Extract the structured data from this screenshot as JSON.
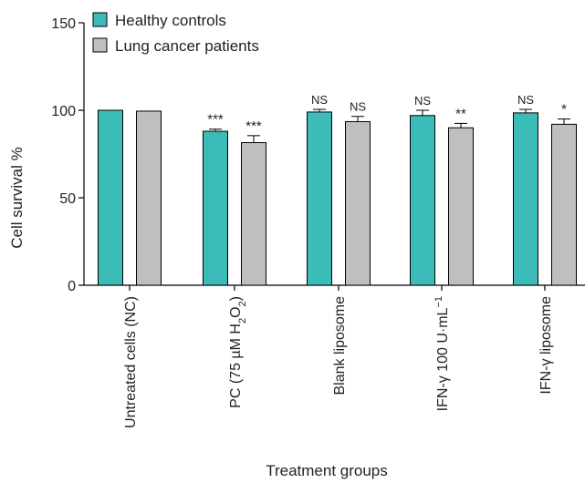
{
  "chart_data": {
    "type": "bar",
    "title": "",
    "xlabel": "Treatment groups",
    "ylabel": "Cell survival %",
    "ylim": [
      0,
      150
    ],
    "yticks": [
      0,
      50,
      100,
      150
    ],
    "grid": false,
    "legend_position": "top-left",
    "categories": [
      {
        "label": "Untreated cells (NC)"
      },
      {
        "label": "PC (75 µM H",
        "sub": "2",
        "label2": "O",
        "sub2": "2",
        "label3": ")"
      },
      {
        "label": "Blank liposome"
      },
      {
        "label": "IFN-γ 100 U·mL",
        "sup": "−1"
      },
      {
        "label": "IFN-γ liposome"
      }
    ],
    "series": [
      {
        "name": "Healthy controls",
        "color": "#3bbcb8",
        "values": [
          100,
          88,
          99,
          97,
          98.5
        ],
        "errors": [
          0,
          1.2,
          1.5,
          3,
          2
        ],
        "annotations": [
          "",
          "***",
          "NS",
          "NS",
          "NS"
        ]
      },
      {
        "name": "Lung cancer patients",
        "color": "#bfbfbf",
        "values": [
          99.5,
          81.5,
          93.5,
          90,
          92
        ],
        "errors": [
          0,
          4,
          3,
          2.5,
          3
        ],
        "annotations": [
          "",
          "***",
          "NS",
          "**",
          "*"
        ]
      }
    ]
  }
}
